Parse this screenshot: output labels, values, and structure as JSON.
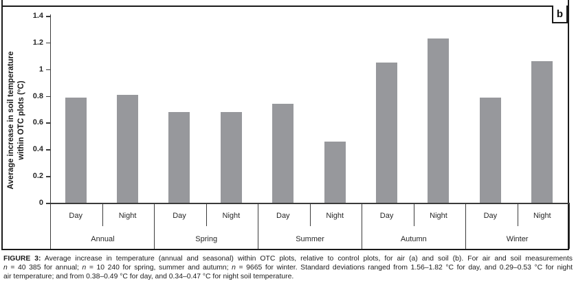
{
  "panel": {
    "label": "b"
  },
  "chart_data": {
    "type": "bar",
    "title": "",
    "ylabel": "Average increase in soil temperature within OTC plots (°C)",
    "ylabel_lines": [
      "Average increase in soil temperature",
      "within OTC plots (°C)"
    ],
    "xlabel": "",
    "ylim": [
      0,
      1.4
    ],
    "yticks": [
      0,
      0.2,
      0.4,
      0.6,
      0.8,
      1,
      1.2,
      1.4
    ],
    "ytick_labels": [
      "0",
      "0.2",
      "0.4",
      "0.6",
      "0.8",
      "1",
      "1.2",
      "1.4"
    ],
    "categories": [
      "Annual",
      "Spring",
      "Summer",
      "Autumn",
      "Winter"
    ],
    "sub_categories": [
      "Day",
      "Night"
    ],
    "series": [
      {
        "name": "Day",
        "values": [
          0.79,
          0.68,
          0.74,
          1.05,
          0.79
        ]
      },
      {
        "name": "Night",
        "values": [
          0.81,
          0.68,
          0.46,
          1.23,
          1.06
        ]
      }
    ],
    "bar_color": "#97989c",
    "axis_color": "#3a3a3a",
    "grid": false,
    "legend": false
  },
  "caption": {
    "lines": [
      [
        {
          "t": "FIGURE 3:",
          "b": 1
        },
        {
          "t": " Average increase in temperature (annual and seasonal) within OTC plots, relative to control plots, for air (a) and soil (b). For air and soil measurements"
        }
      ],
      [
        {
          "t": "n",
          "i": 1
        },
        {
          "t": " = 40 385 for annual; "
        },
        {
          "t": "n",
          "i": 1
        },
        {
          "t": " = 10 240 for spring, summer and autumn; "
        },
        {
          "t": "n",
          "i": 1
        },
        {
          "t": " = 9665 for winter. Standard deviations ranged from 1.56–1.82 °C for day, and 0.29–0.53 °C for night"
        }
      ],
      [
        {
          "t": "air temperature; and from 0.38–0.49 °C for day, and 0.34–0.47 °C for night soil temperature."
        }
      ]
    ]
  }
}
